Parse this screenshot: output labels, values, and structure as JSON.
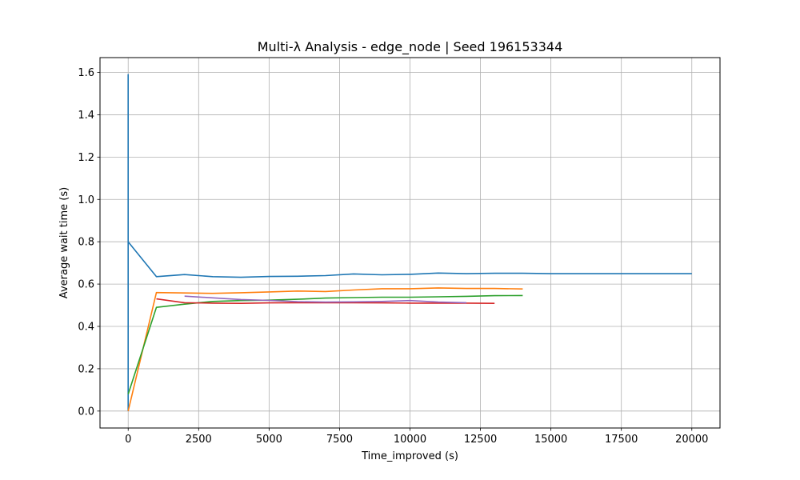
{
  "chart_data": {
    "type": "line",
    "title": "Multi-λ Analysis - edge_node | Seed 196153344",
    "xlabel": "Time_improved (s)",
    "ylabel": "Average wait time (s)",
    "xlim": [
      -1000,
      21000
    ],
    "ylim": [
      -0.08,
      1.67
    ],
    "xticks": [
      0,
      2500,
      5000,
      7500,
      10000,
      12500,
      15000,
      17500,
      20000
    ],
    "xtick_labels": [
      "0",
      "2500",
      "5000",
      "7500",
      "10000",
      "12500",
      "15000",
      "17500",
      "20000"
    ],
    "yticks": [
      0.0,
      0.2,
      0.4,
      0.6,
      0.8,
      1.0,
      1.2,
      1.4,
      1.6
    ],
    "ytick_labels": [
      "0.0",
      "0.2",
      "0.4",
      "0.6",
      "0.8",
      "1.0",
      "1.2",
      "1.4",
      "1.6"
    ],
    "grid": true,
    "legend": "none",
    "series": [
      {
        "color": "#1f77b4",
        "points": [
          [
            0,
            0.0
          ],
          [
            0,
            1.59
          ],
          [
            0,
            0.8
          ],
          [
            1000,
            0.635
          ],
          [
            2000,
            0.645
          ],
          [
            3000,
            0.635
          ],
          [
            4000,
            0.632
          ],
          [
            5000,
            0.636
          ],
          [
            6000,
            0.637
          ],
          [
            7000,
            0.64
          ],
          [
            8000,
            0.648
          ],
          [
            9000,
            0.644
          ],
          [
            10000,
            0.646
          ],
          [
            11000,
            0.652
          ],
          [
            12000,
            0.649
          ],
          [
            13000,
            0.651
          ],
          [
            14000,
            0.651
          ],
          [
            15000,
            0.649
          ],
          [
            16000,
            0.649
          ],
          [
            17000,
            0.649
          ],
          [
            18000,
            0.649
          ],
          [
            19000,
            0.649
          ],
          [
            20000,
            0.649
          ]
        ]
      },
      {
        "color": "#ff7f0e",
        "points": [
          [
            0,
            0.0
          ],
          [
            1000,
            0.56
          ],
          [
            2000,
            0.558
          ],
          [
            3000,
            0.556
          ],
          [
            4000,
            0.559
          ],
          [
            5000,
            0.563
          ],
          [
            6000,
            0.567
          ],
          [
            7000,
            0.565
          ],
          [
            8000,
            0.572
          ],
          [
            9000,
            0.578
          ],
          [
            10000,
            0.578
          ],
          [
            11000,
            0.582
          ],
          [
            12000,
            0.579
          ],
          [
            13000,
            0.579
          ],
          [
            14000,
            0.577
          ]
        ]
      },
      {
        "color": "#2ca02c",
        "points": [
          [
            0,
            0.08
          ],
          [
            1000,
            0.49
          ],
          [
            2000,
            0.505
          ],
          [
            3000,
            0.518
          ],
          [
            4000,
            0.522
          ],
          [
            5000,
            0.524
          ],
          [
            6000,
            0.528
          ],
          [
            7000,
            0.534
          ],
          [
            8000,
            0.536
          ],
          [
            9000,
            0.538
          ],
          [
            10000,
            0.538
          ],
          [
            11000,
            0.54
          ],
          [
            12000,
            0.542
          ],
          [
            13000,
            0.545
          ],
          [
            14000,
            0.546
          ]
        ]
      },
      {
        "color": "#d62728",
        "points": [
          [
            1000,
            0.53
          ],
          [
            2000,
            0.512
          ],
          [
            3000,
            0.51
          ],
          [
            4000,
            0.509
          ],
          [
            5000,
            0.511
          ],
          [
            6000,
            0.512
          ],
          [
            7000,
            0.512
          ],
          [
            8000,
            0.512
          ],
          [
            9000,
            0.511
          ],
          [
            10000,
            0.51
          ],
          [
            11000,
            0.51
          ],
          [
            12000,
            0.51
          ],
          [
            13000,
            0.509
          ]
        ]
      },
      {
        "color": "#9467bd",
        "points": [
          [
            2000,
            0.543
          ],
          [
            3000,
            0.535
          ],
          [
            4000,
            0.527
          ],
          [
            5000,
            0.523
          ],
          [
            6000,
            0.517
          ],
          [
            7000,
            0.515
          ],
          [
            8000,
            0.516
          ],
          [
            9000,
            0.518
          ],
          [
            10000,
            0.522
          ],
          [
            11000,
            0.515
          ],
          [
            12000,
            0.512
          ]
        ]
      }
    ]
  }
}
